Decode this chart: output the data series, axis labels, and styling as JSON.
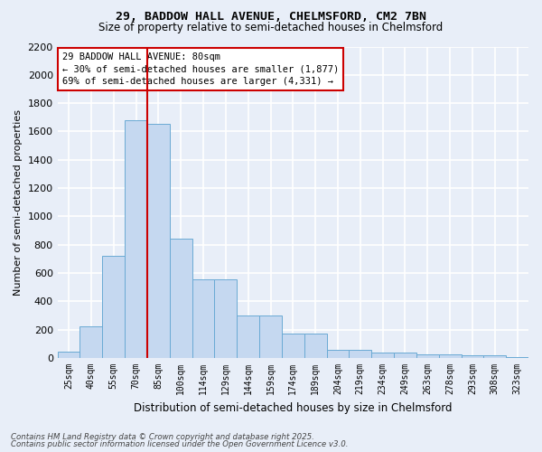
{
  "title_line1": "29, BADDOW HALL AVENUE, CHELMSFORD, CM2 7BN",
  "title_line2": "Size of property relative to semi-detached houses in Chelmsford",
  "xlabel": "Distribution of semi-detached houses by size in Chelmsford",
  "ylabel": "Number of semi-detached properties",
  "bins": [
    "25sqm",
    "40sqm",
    "55sqm",
    "70sqm",
    "85sqm",
    "100sqm",
    "114sqm",
    "129sqm",
    "144sqm",
    "159sqm",
    "174sqm",
    "189sqm",
    "204sqm",
    "219sqm",
    "234sqm",
    "249sqm",
    "263sqm",
    "278sqm",
    "293sqm",
    "308sqm",
    "323sqm"
  ],
  "bar_heights": [
    45,
    225,
    725,
    1680,
    1655,
    845,
    555,
    555,
    300,
    300,
    175,
    175,
    60,
    60,
    37,
    37,
    25,
    25,
    18,
    18,
    7
  ],
  "bar_color": "#c5d8f0",
  "bar_edge_color": "#6aaad4",
  "annotation_title": "29 BADDOW HALL AVENUE: 80sqm",
  "annotation_line1": "← 30% of semi-detached houses are smaller (1,877)",
  "annotation_line2": "69% of semi-detached houses are larger (4,331) →",
  "annotation_box_color": "#ffffff",
  "annotation_box_edge": "#cc0000",
  "vline_color": "#cc0000",
  "vline_x": 3.5,
  "ylim": [
    0,
    2200
  ],
  "yticks": [
    0,
    200,
    400,
    600,
    800,
    1000,
    1200,
    1400,
    1600,
    1800,
    2000,
    2200
  ],
  "background_color": "#e8eef8",
  "grid_color": "#ffffff",
  "footer_line1": "Contains HM Land Registry data © Crown copyright and database right 2025.",
  "footer_line2": "Contains public sector information licensed under the Open Government Licence v3.0."
}
